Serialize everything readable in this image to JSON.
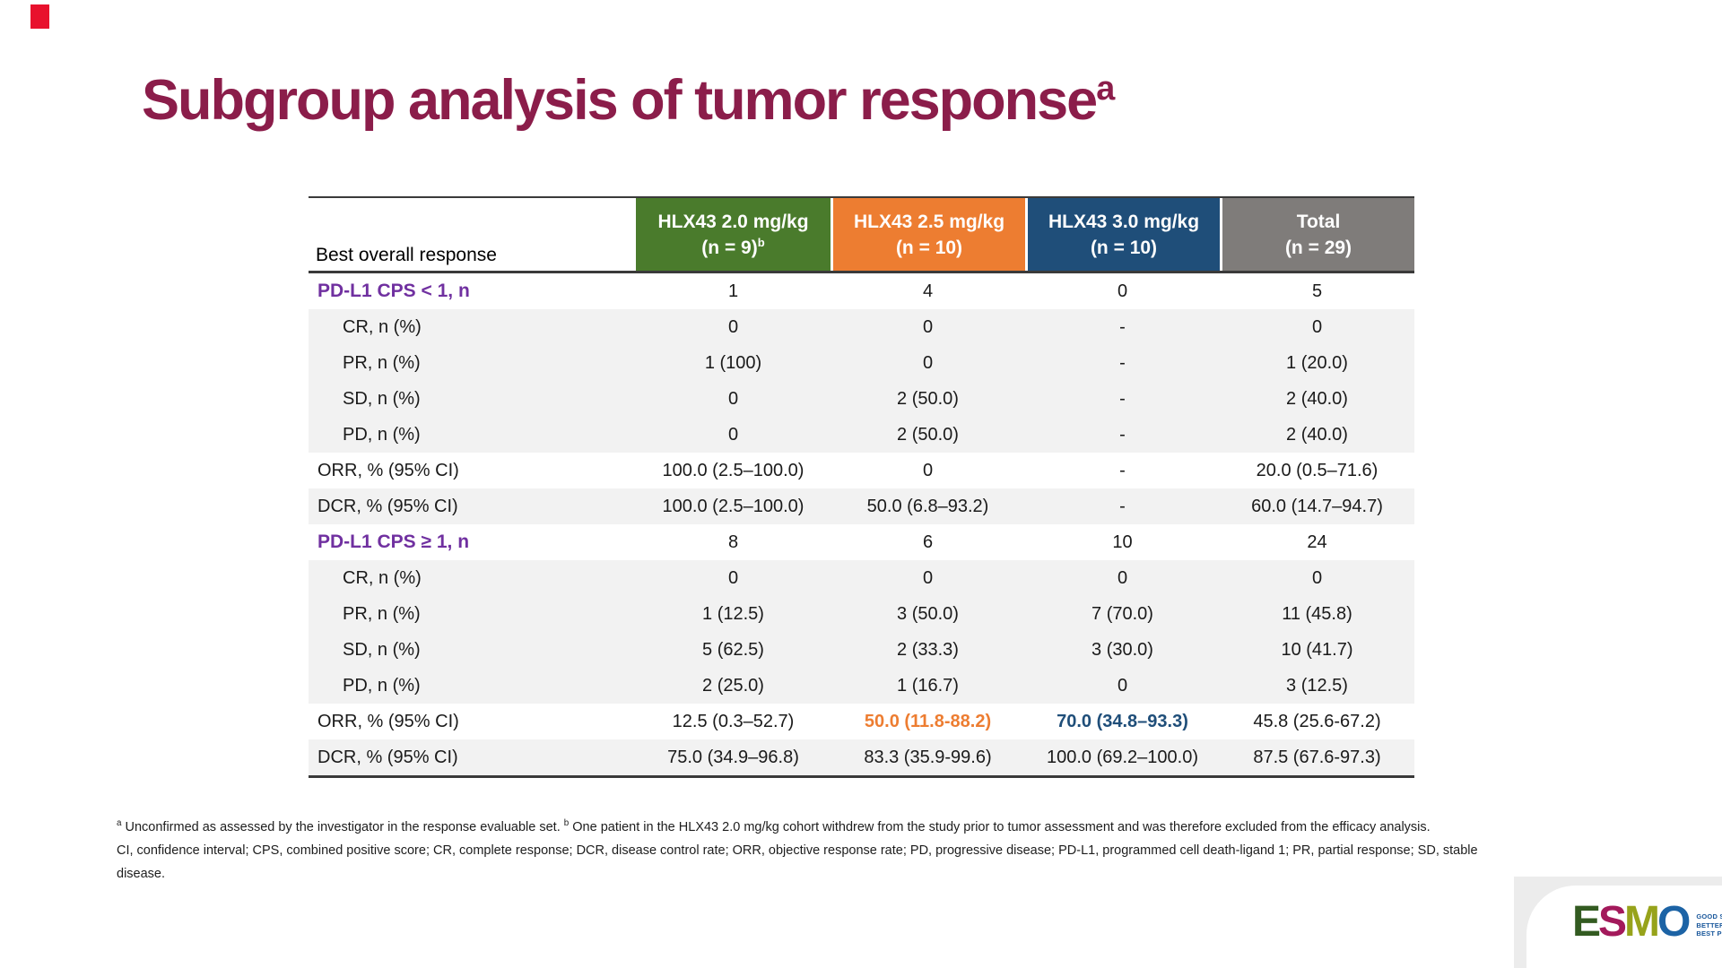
{
  "slide": {
    "title": "Subgroup analysis of tumor response",
    "title_superscript": "a",
    "title_color": "#8b1d4a",
    "corner_mark_color": "#e8112d"
  },
  "table": {
    "row_header_label": "Best overall response",
    "columns": [
      {
        "line1": "HLX43 2.0 mg/kg",
        "line2": "(n = 9)",
        "line2_sup": "b",
        "color": "#4a7b2c"
      },
      {
        "line1": "HLX43 2.5 mg/kg",
        "line2": "(n = 10)",
        "line2_sup": "",
        "color": "#ed7d31"
      },
      {
        "line1": "HLX43 3.0 mg/kg",
        "line2": "(n = 10)",
        "line2_sup": "",
        "color": "#1f4e79"
      },
      {
        "line1": "Total",
        "line2": "(n = 29)",
        "line2_sup": "",
        "color": "#7f7c7a"
      }
    ],
    "rows": [
      {
        "label": "PD-L1 CPS < 1, n",
        "values": [
          "1",
          "4",
          "0",
          "5"
        ]
      },
      {
        "label": "CR, n (%)",
        "values": [
          "0",
          "0",
          "-",
          "0"
        ]
      },
      {
        "label": "PR, n (%)",
        "values": [
          "1 (100)",
          "0",
          "-",
          "1 (20.0)"
        ]
      },
      {
        "label": "SD, n (%)",
        "values": [
          "0",
          "2 (50.0)",
          "-",
          "2 (40.0)"
        ]
      },
      {
        "label": "PD, n (%)",
        "values": [
          "0",
          "2 (50.0)",
          "-",
          "2 (40.0)"
        ]
      },
      {
        "label": "ORR, % (95% CI)",
        "values": [
          "100.0 (2.5–100.0)",
          "0",
          "-",
          "20.0 (0.5–71.6)"
        ]
      },
      {
        "label": "DCR, % (95% CI)",
        "values": [
          "100.0 (2.5–100.0)",
          "50.0 (6.8–93.2)",
          "-",
          "60.0 (14.7–94.7)"
        ]
      },
      {
        "label": "PD-L1 CPS ≥ 1, n",
        "values": [
          "8",
          "6",
          "10",
          "24"
        ]
      },
      {
        "label": "CR, n (%)",
        "values": [
          "0",
          "0",
          "0",
          "0"
        ]
      },
      {
        "label": "PR, n (%)",
        "values": [
          "1 (12.5)",
          "3 (50.0)",
          "7 (70.0)",
          "11 (45.8)"
        ]
      },
      {
        "label": "SD, n (%)",
        "values": [
          "5 (62.5)",
          "2 (33.3)",
          "3 (30.0)",
          "10 (41.7)"
        ]
      },
      {
        "label": "PD, n (%)",
        "values": [
          "2 (25.0)",
          "1 (16.7)",
          "0",
          "3 (12.5)"
        ]
      },
      {
        "label": "ORR, % (95% CI)",
        "values": [
          "12.5 (0.3–52.7)",
          "50.0 (11.8-88.2)",
          "70.0 (34.8–93.3)",
          "45.8 (25.6-67.2)"
        ]
      },
      {
        "label": "DCR, % (95% CI)",
        "values": [
          "75.0 (34.9–96.8)",
          "83.3 (35.9-99.6)",
          "100.0 (69.2–100.0)",
          "87.5 (67.6-97.3)"
        ]
      }
    ],
    "group_label_color": "#7030a0",
    "highlight_orange": "#ed7d31",
    "highlight_blue": "#1f4e79",
    "shaded_row_color": "#f2f2f2"
  },
  "footnotes": {
    "note_a_marker": "a",
    "note_a_text": " Unconfirmed as assessed by the investigator in the response evaluable set. ",
    "note_b_marker": "b",
    "note_b_text": " One patient in the HLX43 2.0 mg/kg cohort withdrew from the study prior to tumor assessment and was therefore excluded from the efficacy analysis.",
    "abbreviations": "CI, confidence interval; CPS, combined positive score; CR, complete response; DCR, disease control rate; ORR, objective response rate; PD, progressive disease; PD-L1, programmed cell death-ligand 1; PR, partial response; SD, stable disease."
  },
  "logo": {
    "letters": [
      {
        "char": "E",
        "color": "#335b21"
      },
      {
        "char": "S",
        "color": "#a3195b"
      },
      {
        "char": "M",
        "color": "#97a31b"
      },
      {
        "char": "O",
        "color": "#1c63a5"
      }
    ],
    "tagline": {
      "line1": "GOOD SCIENCE",
      "line2": "BETTER MEDICINE",
      "line3": "BEST PRACTICE"
    },
    "tagline_color": "#19579b"
  }
}
